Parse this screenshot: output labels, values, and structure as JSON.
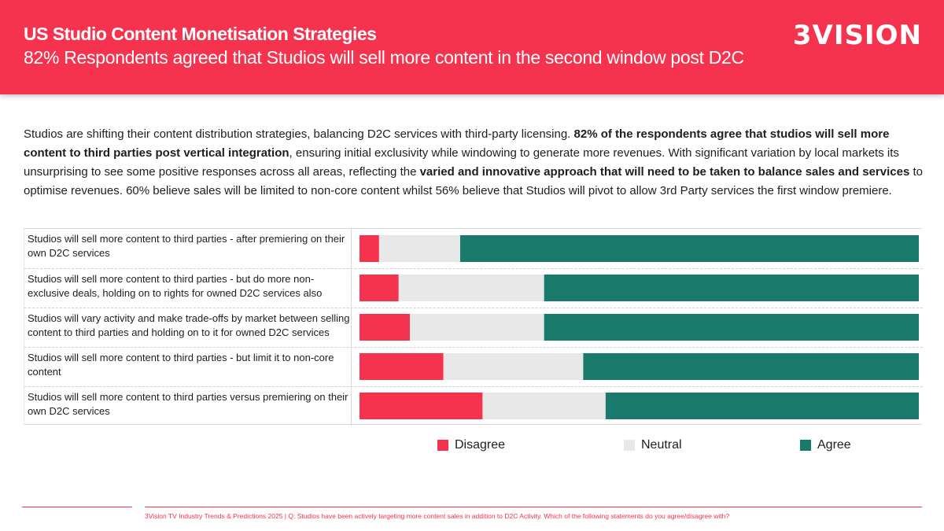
{
  "header": {
    "title": "US Studio Content Monetisation Strategies",
    "subtitle": "82% Respondents agreed that Studios will sell more content in the second window post D2C",
    "logo_text": "3VISION"
  },
  "intro": [
    {
      "text": "Studios are shifting their content distribution strategies, balancing D2C services with third-party licensing.  ",
      "bold": false
    },
    {
      "text": "82% of the respondents agree that studios will sell more content to third parties post vertical integration",
      "bold": true
    },
    {
      "text": ", ensuring initial exclusivity while windowing to generate more revenues. With significant variation by local markets its unsurprising to see some positive responses across all areas, reflecting the ",
      "bold": false
    },
    {
      "text": "varied and innovative approach that will need to be taken to balance sales and services",
      "bold": true
    },
    {
      "text": " to optimise revenues.  60% believe sales will be limited to non-core content whilst 56% believe that Studios will pivot to allow 3rd Party services the first window premiere.",
      "bold": false
    }
  ],
  "colors": {
    "brand": "#f5334f",
    "disagree": "#f5334f",
    "neutral": "#e8e8e8",
    "agree": "#1a7a6c"
  },
  "chart_data": {
    "type": "bar",
    "orientation": "horizontal",
    "stacked": "100%",
    "categories": [
      "Studios will sell more content to third parties - after premiering on their own D2C services",
      "Studios will sell more content to third parties - but do more non-exclusive deals, holding on to rights for owned D2C services also",
      "Studios will vary activity and make trade-offs by market between selling content to third parties and holding on to it for owned D2C services",
      "Studios will sell more content to third parties - but limit it to non-core content",
      "Studios will sell more content to third parties versus premiering on their own D2C services"
    ],
    "series": [
      {
        "name": "Disagree",
        "color": "#f5334f",
        "values": [
          3.5,
          7,
          9,
          15,
          22
        ]
      },
      {
        "name": "Neutral",
        "color": "#e8e8e8",
        "values": [
          14.5,
          26,
          24,
          25,
          22
        ]
      },
      {
        "name": "Agree",
        "color": "#1a7a6c",
        "values": [
          82,
          67,
          67,
          60,
          56
        ]
      }
    ],
    "xlim": [
      0,
      100
    ],
    "grid": false,
    "legend_position": "bottom"
  },
  "footer": {
    "text": "3Vision TV Industry Trends & Predictions 2025 | Q: Studios have been actively targeting more content sales in addition to D2C Activity. Which of the following statements do you agree/disagree with?"
  }
}
